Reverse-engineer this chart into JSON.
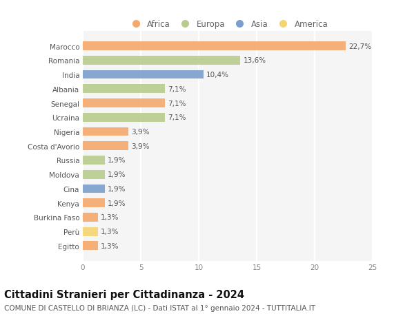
{
  "countries": [
    "Marocco",
    "Romania",
    "India",
    "Albania",
    "Senegal",
    "Ucraina",
    "Nigeria",
    "Costa d'Avorio",
    "Russia",
    "Moldova",
    "Cina",
    "Kenya",
    "Burkina Faso",
    "Perù",
    "Egitto"
  ],
  "values": [
    22.7,
    13.6,
    10.4,
    7.1,
    7.1,
    7.1,
    3.9,
    3.9,
    1.9,
    1.9,
    1.9,
    1.9,
    1.3,
    1.3,
    1.3
  ],
  "labels": [
    "22,7%",
    "13,6%",
    "10,4%",
    "7,1%",
    "7,1%",
    "7,1%",
    "3,9%",
    "3,9%",
    "1,9%",
    "1,9%",
    "1,9%",
    "1,9%",
    "1,3%",
    "1,3%",
    "1,3%"
  ],
  "continents": [
    "Africa",
    "Europa",
    "Asia",
    "Europa",
    "Africa",
    "Europa",
    "Africa",
    "Africa",
    "Europa",
    "Europa",
    "Asia",
    "Africa",
    "Africa",
    "America",
    "Africa"
  ],
  "continent_colors": {
    "Africa": "#F5A86B",
    "Europa": "#B8CC8E",
    "Asia": "#7B9FCC",
    "America": "#F5D472"
  },
  "legend_order": [
    "Africa",
    "Europa",
    "Asia",
    "America"
  ],
  "title": "Cittadini Stranieri per Cittadinanza - 2024",
  "subtitle": "COMUNE DI CASTELLO DI BRIANZA (LC) - Dati ISTAT al 1° gennaio 2024 - TUTTITALIA.IT",
  "xlim": [
    0,
    25
  ],
  "xticks": [
    0,
    5,
    10,
    15,
    20,
    25
  ],
  "background_color": "#ffffff",
  "plot_bg_color": "#f5f5f5",
  "grid_color": "#ffffff",
  "bar_height": 0.62,
  "title_fontsize": 10.5,
  "subtitle_fontsize": 7.5,
  "label_fontsize": 7.5,
  "tick_fontsize": 7.5,
  "legend_fontsize": 8.5
}
